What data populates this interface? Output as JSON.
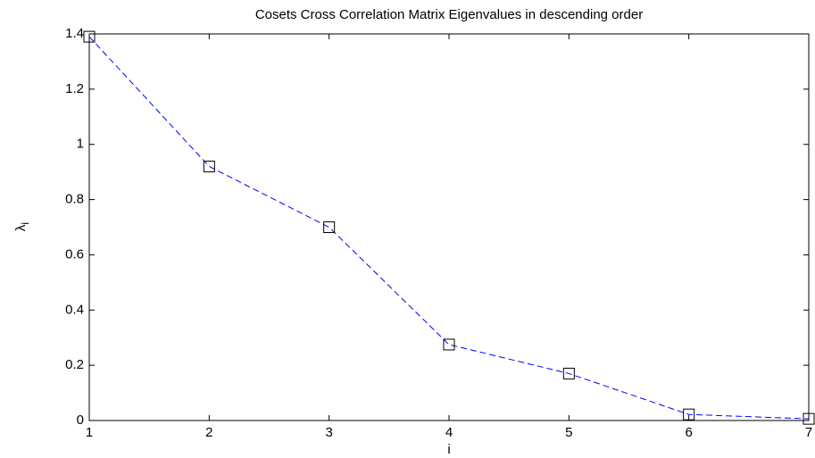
{
  "chart_data": {
    "type": "line",
    "title": "Cosets Cross Correlation Matrix Eigenvalues in descending order",
    "x_label": "i",
    "y_label": "λ",
    "y_label_subscript": "i",
    "x": [
      1,
      2,
      3,
      4,
      5,
      6,
      7
    ],
    "values": [
      1.39,
      0.92,
      0.7,
      0.275,
      0.17,
      0.022,
      0.006
    ],
    "color": "#0000ff",
    "marker_color": "#000000",
    "xlim": [
      1,
      7
    ],
    "xticks": [
      1,
      2,
      3,
      4,
      5,
      6,
      7
    ],
    "ylim": [
      0,
      1.4
    ],
    "yticks": [
      0,
      0.2,
      0.4,
      0.6,
      0.8,
      1,
      1.2,
      1.4
    ]
  }
}
